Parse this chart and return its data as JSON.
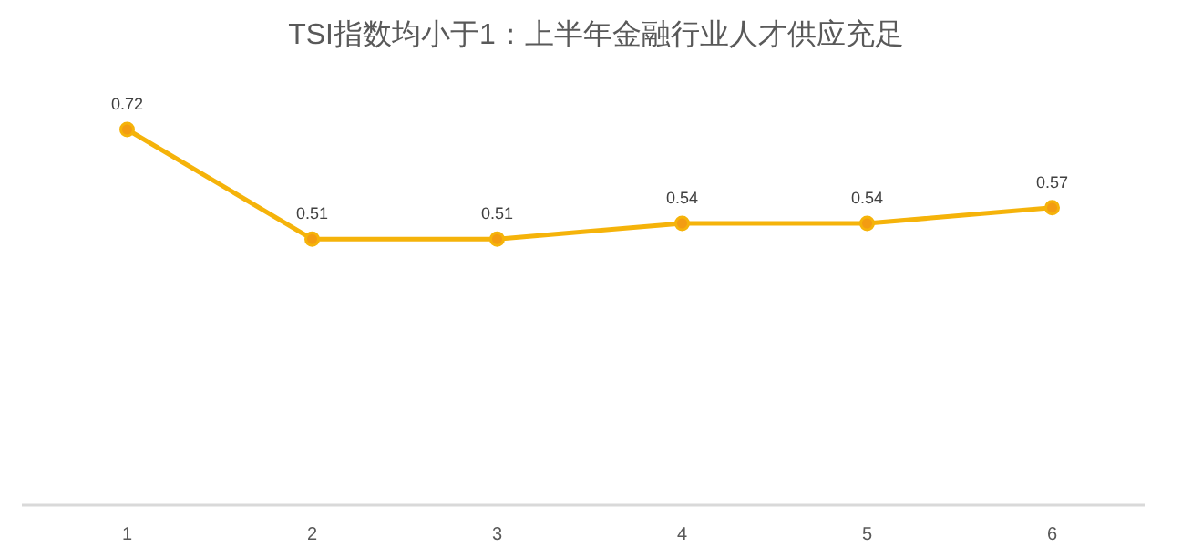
{
  "chart_data": {
    "type": "line",
    "title": "TSI指数均小于1：上半年金融行业人才供应充足",
    "categories": [
      "1",
      "2",
      "3",
      "4",
      "5",
      "6"
    ],
    "series": [
      {
        "color": "#f5b30a",
        "values": [
          0.72,
          0.51,
          0.51,
          0.54,
          0.54,
          0.57
        ]
      }
    ],
    "data_labels": true,
    "marker": "circle",
    "line_style": "solid",
    "tick_labels": "x"
  }
}
